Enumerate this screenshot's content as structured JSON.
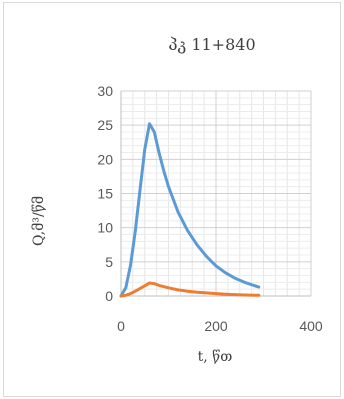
{
  "chart_data": {
    "type": "line",
    "title": "პკ 11+840",
    "xlabel": "t, წთ",
    "ylabel": "Q,მ³/წმ",
    "xlim": [
      0,
      400
    ],
    "ylim": [
      0,
      30
    ],
    "x_ticks": [
      "0",
      "200",
      "400"
    ],
    "y_ticks": [
      "0",
      "5",
      "10",
      "15",
      "20",
      "25",
      "30"
    ],
    "grid": "on",
    "legend": "none",
    "series": [
      {
        "color": "#5b9bd5",
        "x": [
          0,
          10,
          20,
          30,
          40,
          50,
          60,
          70,
          80,
          90,
          100,
          120,
          140,
          160,
          180,
          200,
          220,
          240,
          260,
          290
        ],
        "y": [
          0,
          1.2,
          4.5,
          9.5,
          15.5,
          21.5,
          25.2,
          24.0,
          21.0,
          18.3,
          16.0,
          12.3,
          9.6,
          7.5,
          5.8,
          4.4,
          3.4,
          2.6,
          2.0,
          1.3
        ]
      },
      {
        "color": "#ed7d31",
        "x": [
          0,
          10,
          20,
          30,
          40,
          50,
          60,
          70,
          80,
          100,
          120,
          140,
          160,
          180,
          200,
          220,
          240,
          260,
          290
        ],
        "y": [
          0,
          0.1,
          0.35,
          0.7,
          1.1,
          1.5,
          1.9,
          1.8,
          1.55,
          1.2,
          0.9,
          0.7,
          0.55,
          0.45,
          0.35,
          0.27,
          0.2,
          0.15,
          0.1
        ]
      }
    ]
  }
}
